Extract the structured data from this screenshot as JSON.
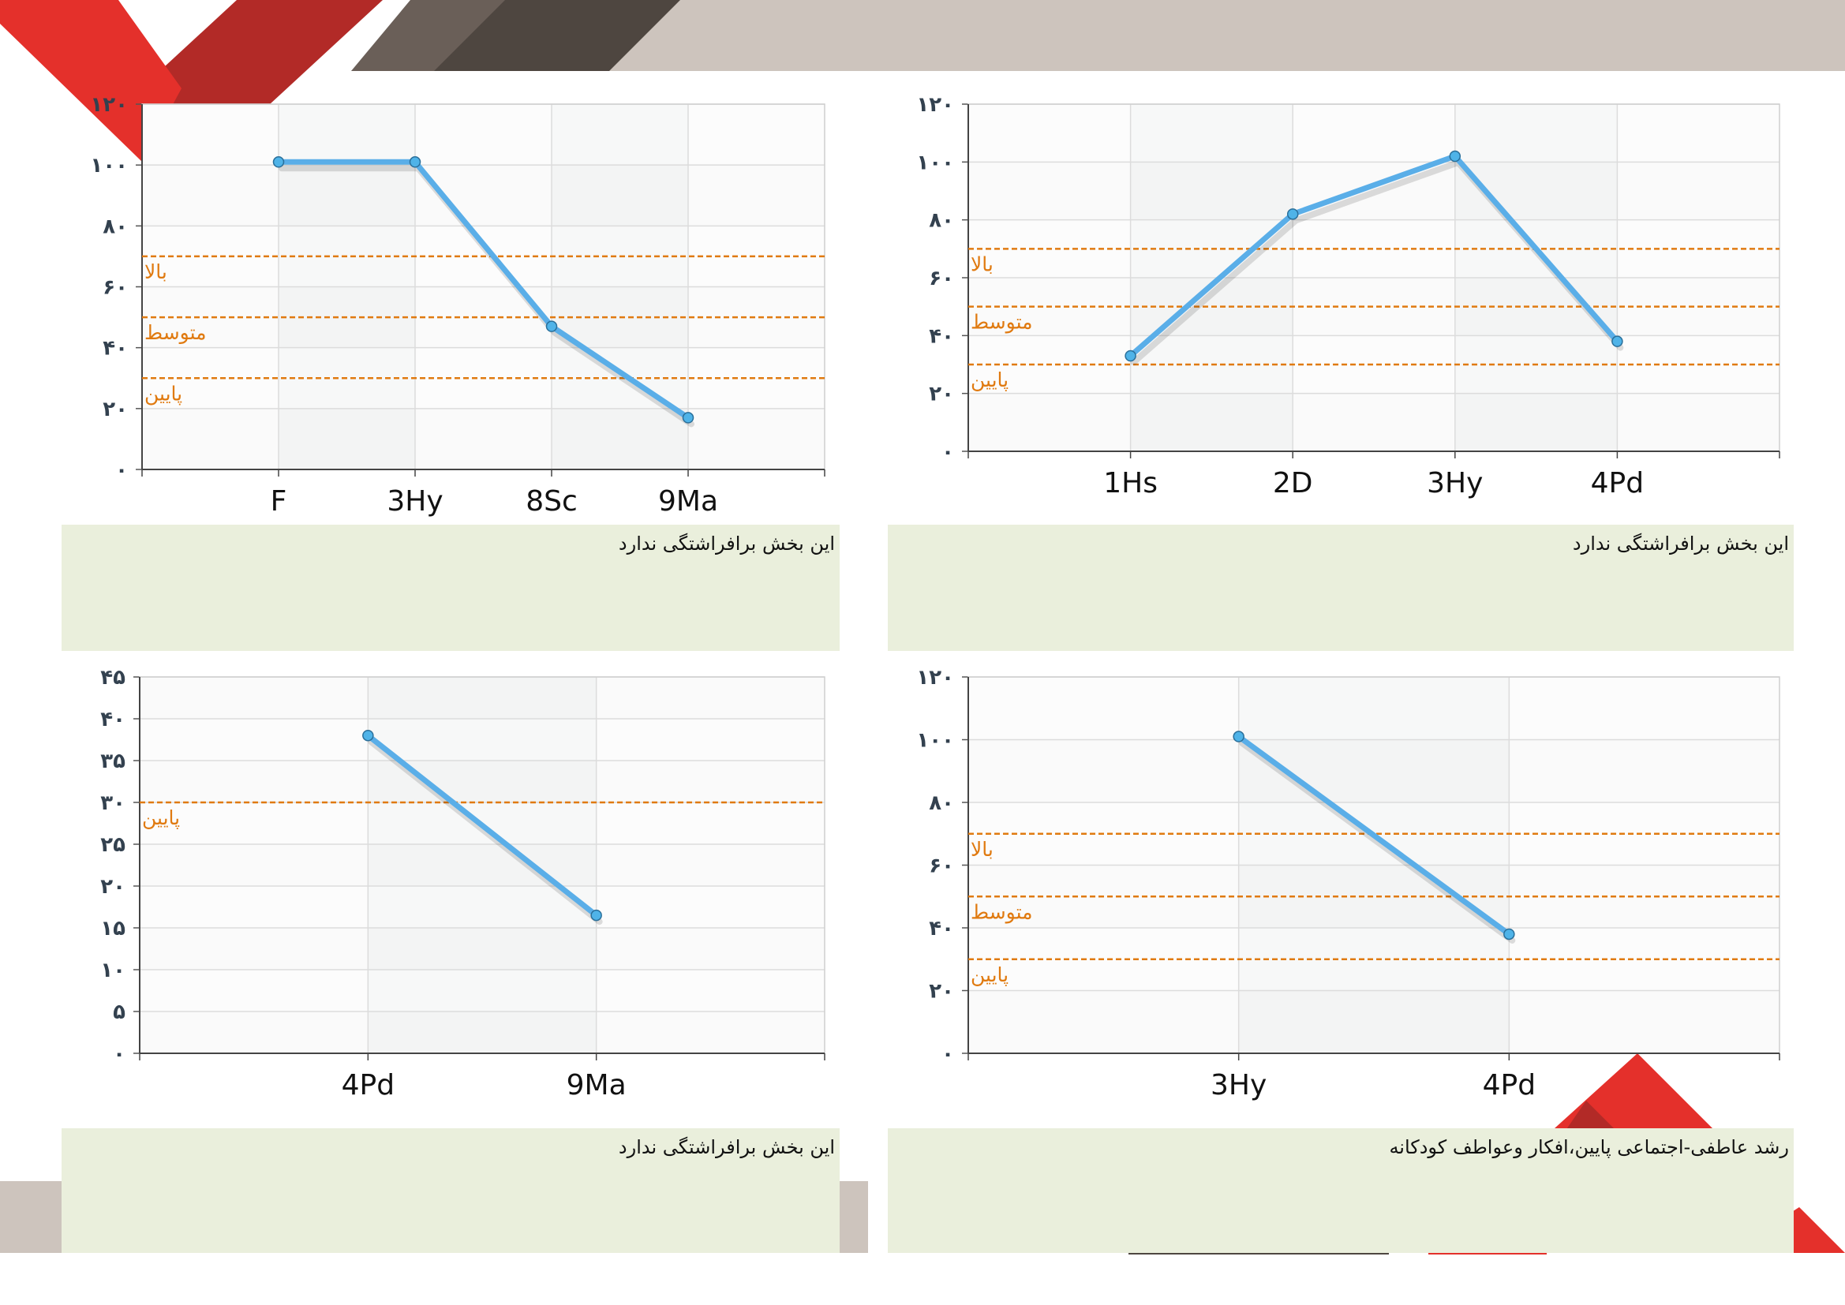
{
  "colors": {
    "series_line": "#5aaee8",
    "series_point": "#4fb3e8",
    "band_line": "#e07a10",
    "note_bg": "#eaefdc",
    "deco_red": "#e4302b",
    "deco_darkred": "#b22a27",
    "deco_brown": "#4e4640",
    "deco_beige": "#cdc4bd"
  },
  "chart_data": [
    {
      "id": "top-left",
      "type": "line",
      "categories": [
        "F",
        "3Hy",
        "8Sc",
        "9Ma"
      ],
      "values": [
        101,
        101,
        47,
        17
      ],
      "ylim": [
        0,
        120
      ],
      "yticks": [
        0,
        20,
        40,
        60,
        80,
        100,
        120
      ],
      "ytick_labels": [
        "۰",
        "۲۰",
        "۴۰",
        "۶۰",
        "۸۰",
        "۱۰۰",
        "۱۲۰"
      ],
      "bands": [
        {
          "label": "بالا",
          "y": 70
        },
        {
          "label": "متوسط",
          "y": 50
        },
        {
          "label": "پایین",
          "y": 30
        }
      ],
      "note": "این بخش برافراشتگی ندارد"
    },
    {
      "id": "top-right",
      "type": "line",
      "categories": [
        "1Hs",
        "2D",
        "3Hy",
        "4Pd"
      ],
      "values": [
        33,
        82,
        102,
        38
      ],
      "ylim": [
        0,
        120
      ],
      "yticks": [
        0,
        20,
        40,
        60,
        80,
        100,
        120
      ],
      "ytick_labels": [
        "۰",
        "۲۰",
        "۴۰",
        "۶۰",
        "۸۰",
        "۱۰۰",
        "۱۲۰"
      ],
      "bands": [
        {
          "label": "بالا",
          "y": 70
        },
        {
          "label": "متوسط",
          "y": 50
        },
        {
          "label": "پایین",
          "y": 30
        }
      ],
      "note": "این بخش برافراشتگی ندارد"
    },
    {
      "id": "bottom-left",
      "type": "line",
      "categories": [
        "4Pd",
        "9Ma"
      ],
      "values": [
        38,
        16.5
      ],
      "ylim": [
        0,
        45
      ],
      "yticks": [
        0,
        5,
        10,
        15,
        20,
        25,
        30,
        35,
        40,
        45
      ],
      "ytick_labels": [
        "۰",
        "۵",
        "۱۰",
        "۱۵",
        "۲۰",
        "۲۵",
        "۳۰",
        "۳۵",
        "۴۰",
        "۴۵"
      ],
      "bands": [
        {
          "label": "پایین",
          "y": 30
        }
      ],
      "note": "این بخش برافراشتگی ندارد"
    },
    {
      "id": "bottom-right",
      "type": "line",
      "categories": [
        "3Hy",
        "4Pd"
      ],
      "values": [
        101,
        38
      ],
      "ylim": [
        0,
        120
      ],
      "yticks": [
        0,
        20,
        40,
        60,
        80,
        100,
        120
      ],
      "ytick_labels": [
        "۰",
        "۲۰",
        "۴۰",
        "۶۰",
        "۸۰",
        "۱۰۰",
        "۱۲۰"
      ],
      "bands": [
        {
          "label": "بالا",
          "y": 70
        },
        {
          "label": "متوسط",
          "y": 50
        },
        {
          "label": "پایین",
          "y": 30
        }
      ],
      "note": "رشد عاطفی-اجتماعی پایین،افکار وعواطف کودکانه"
    }
  ]
}
